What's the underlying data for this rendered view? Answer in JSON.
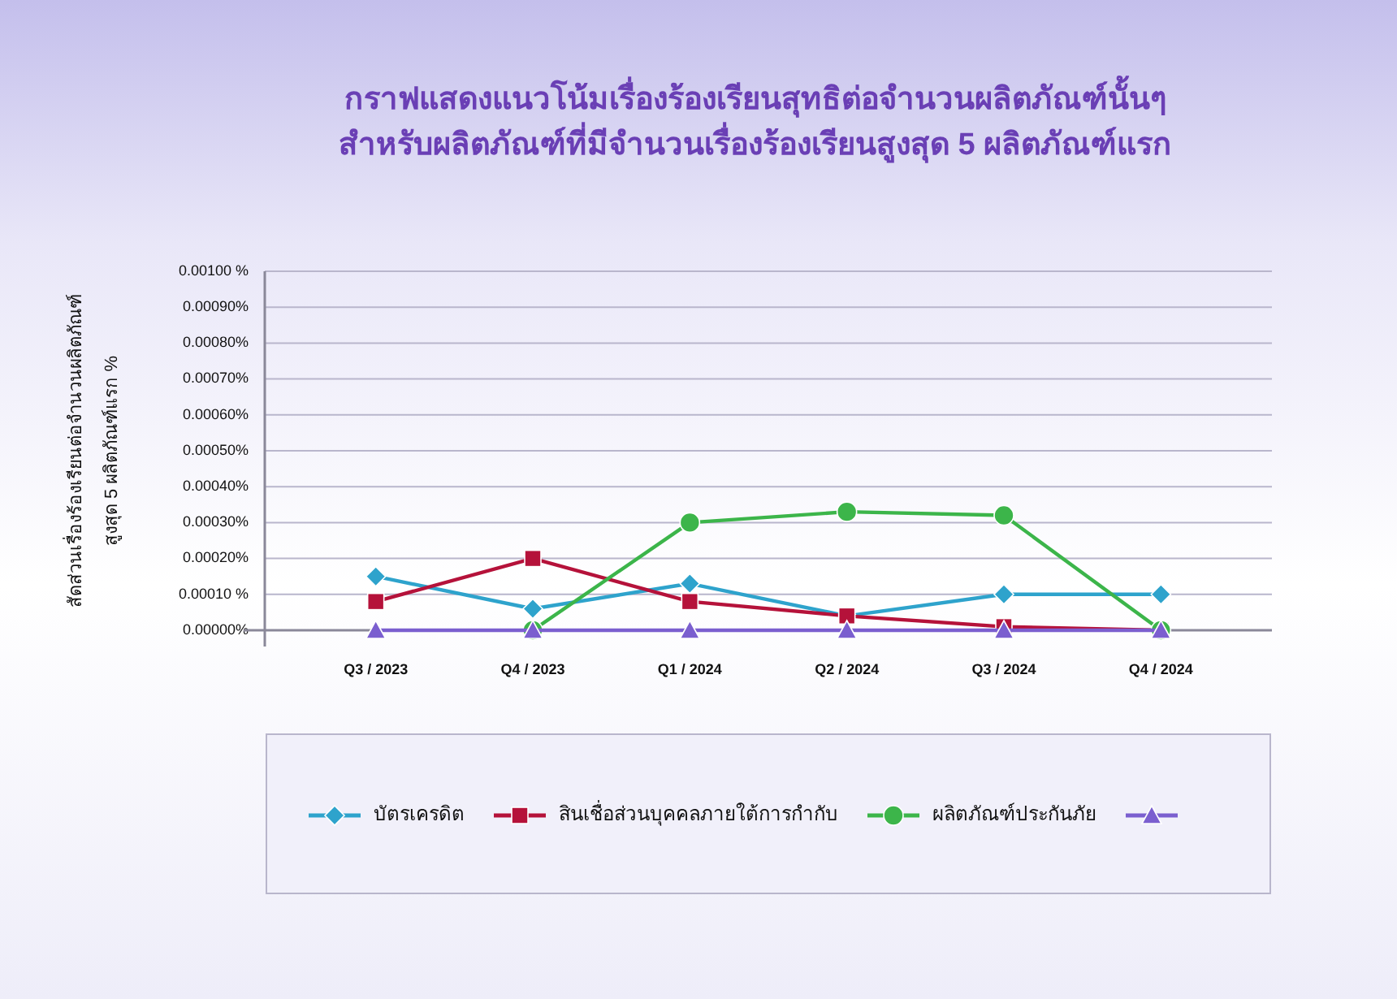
{
  "chart_data": {
    "type": "line",
    "title": "กราฟแสดงแนวโน้มเรื่องร้องเรียนสุทธิต่อจำนวนผลิตภัณฑ์นั้นๆ",
    "subtitle": "สำหรับผลิตภัณฑ์ที่มีจำนวนเรื่องร้องเรียนสูงสุด 5 ผลิตภัณฑ์แรก",
    "ylabel": "สัดส่วนเรื่องร้องเรียนต่อจำนวนผลิตภัณฑ์\nสูงสุด 5 ผลิตภัณฑ์แรก   %",
    "categories": [
      "Q3 / 2023",
      "Q4 / 2023",
      "Q1 / 2024",
      "Q2 / 2024",
      "Q3 / 2024",
      "Q4 / 2024"
    ],
    "series": [
      {
        "name": "บัตรเครดิต",
        "color": "#2ea3cc",
        "marker": "diamond",
        "values": [
          0.00015,
          6e-05,
          0.00013,
          4e-05,
          0.0001,
          0.0001
        ]
      },
      {
        "name": "สินเชื่อส่วนบุคคลภายใต้การกำกับ",
        "color": "#b5123a",
        "marker": "square",
        "values": [
          8e-05,
          0.0002,
          8e-05,
          4e-05,
          1e-05,
          0
        ]
      },
      {
        "name": "ผลิตภัณฑ์ประกันภัย",
        "color": "#3cb54a",
        "marker": "circle",
        "values": [
          null,
          0,
          0.0003,
          0.00033,
          0.00032,
          0
        ]
      },
      {
        "color": "#7b5fcf",
        "marker": "triangle",
        "values": [
          0,
          0,
          0,
          0,
          0,
          0
        ]
      }
    ],
    "ylim": [
      0,
      0.001
    ],
    "yticks": [
      {
        "value": 0,
        "label": "0.00000%"
      },
      {
        "value": 0.0001,
        "label": "0.00010 %"
      },
      {
        "value": 0.0002,
        "label": "0.00020%"
      },
      {
        "value": 0.0003,
        "label": "0.00030%"
      },
      {
        "value": 0.0004,
        "label": "0.00040%"
      },
      {
        "value": 0.0005,
        "label": "0.00050%"
      },
      {
        "value": 0.0006,
        "label": "0.00060%"
      },
      {
        "value": 0.0007,
        "label": "0.00070%"
      },
      {
        "value": 0.0008,
        "label": "0.00080%"
      },
      {
        "value": 0.0009,
        "label": "0.00090%"
      },
      {
        "value": 0.001,
        "label": "0.00100 %"
      }
    ],
    "grid": "y",
    "legend": "bottom"
  }
}
